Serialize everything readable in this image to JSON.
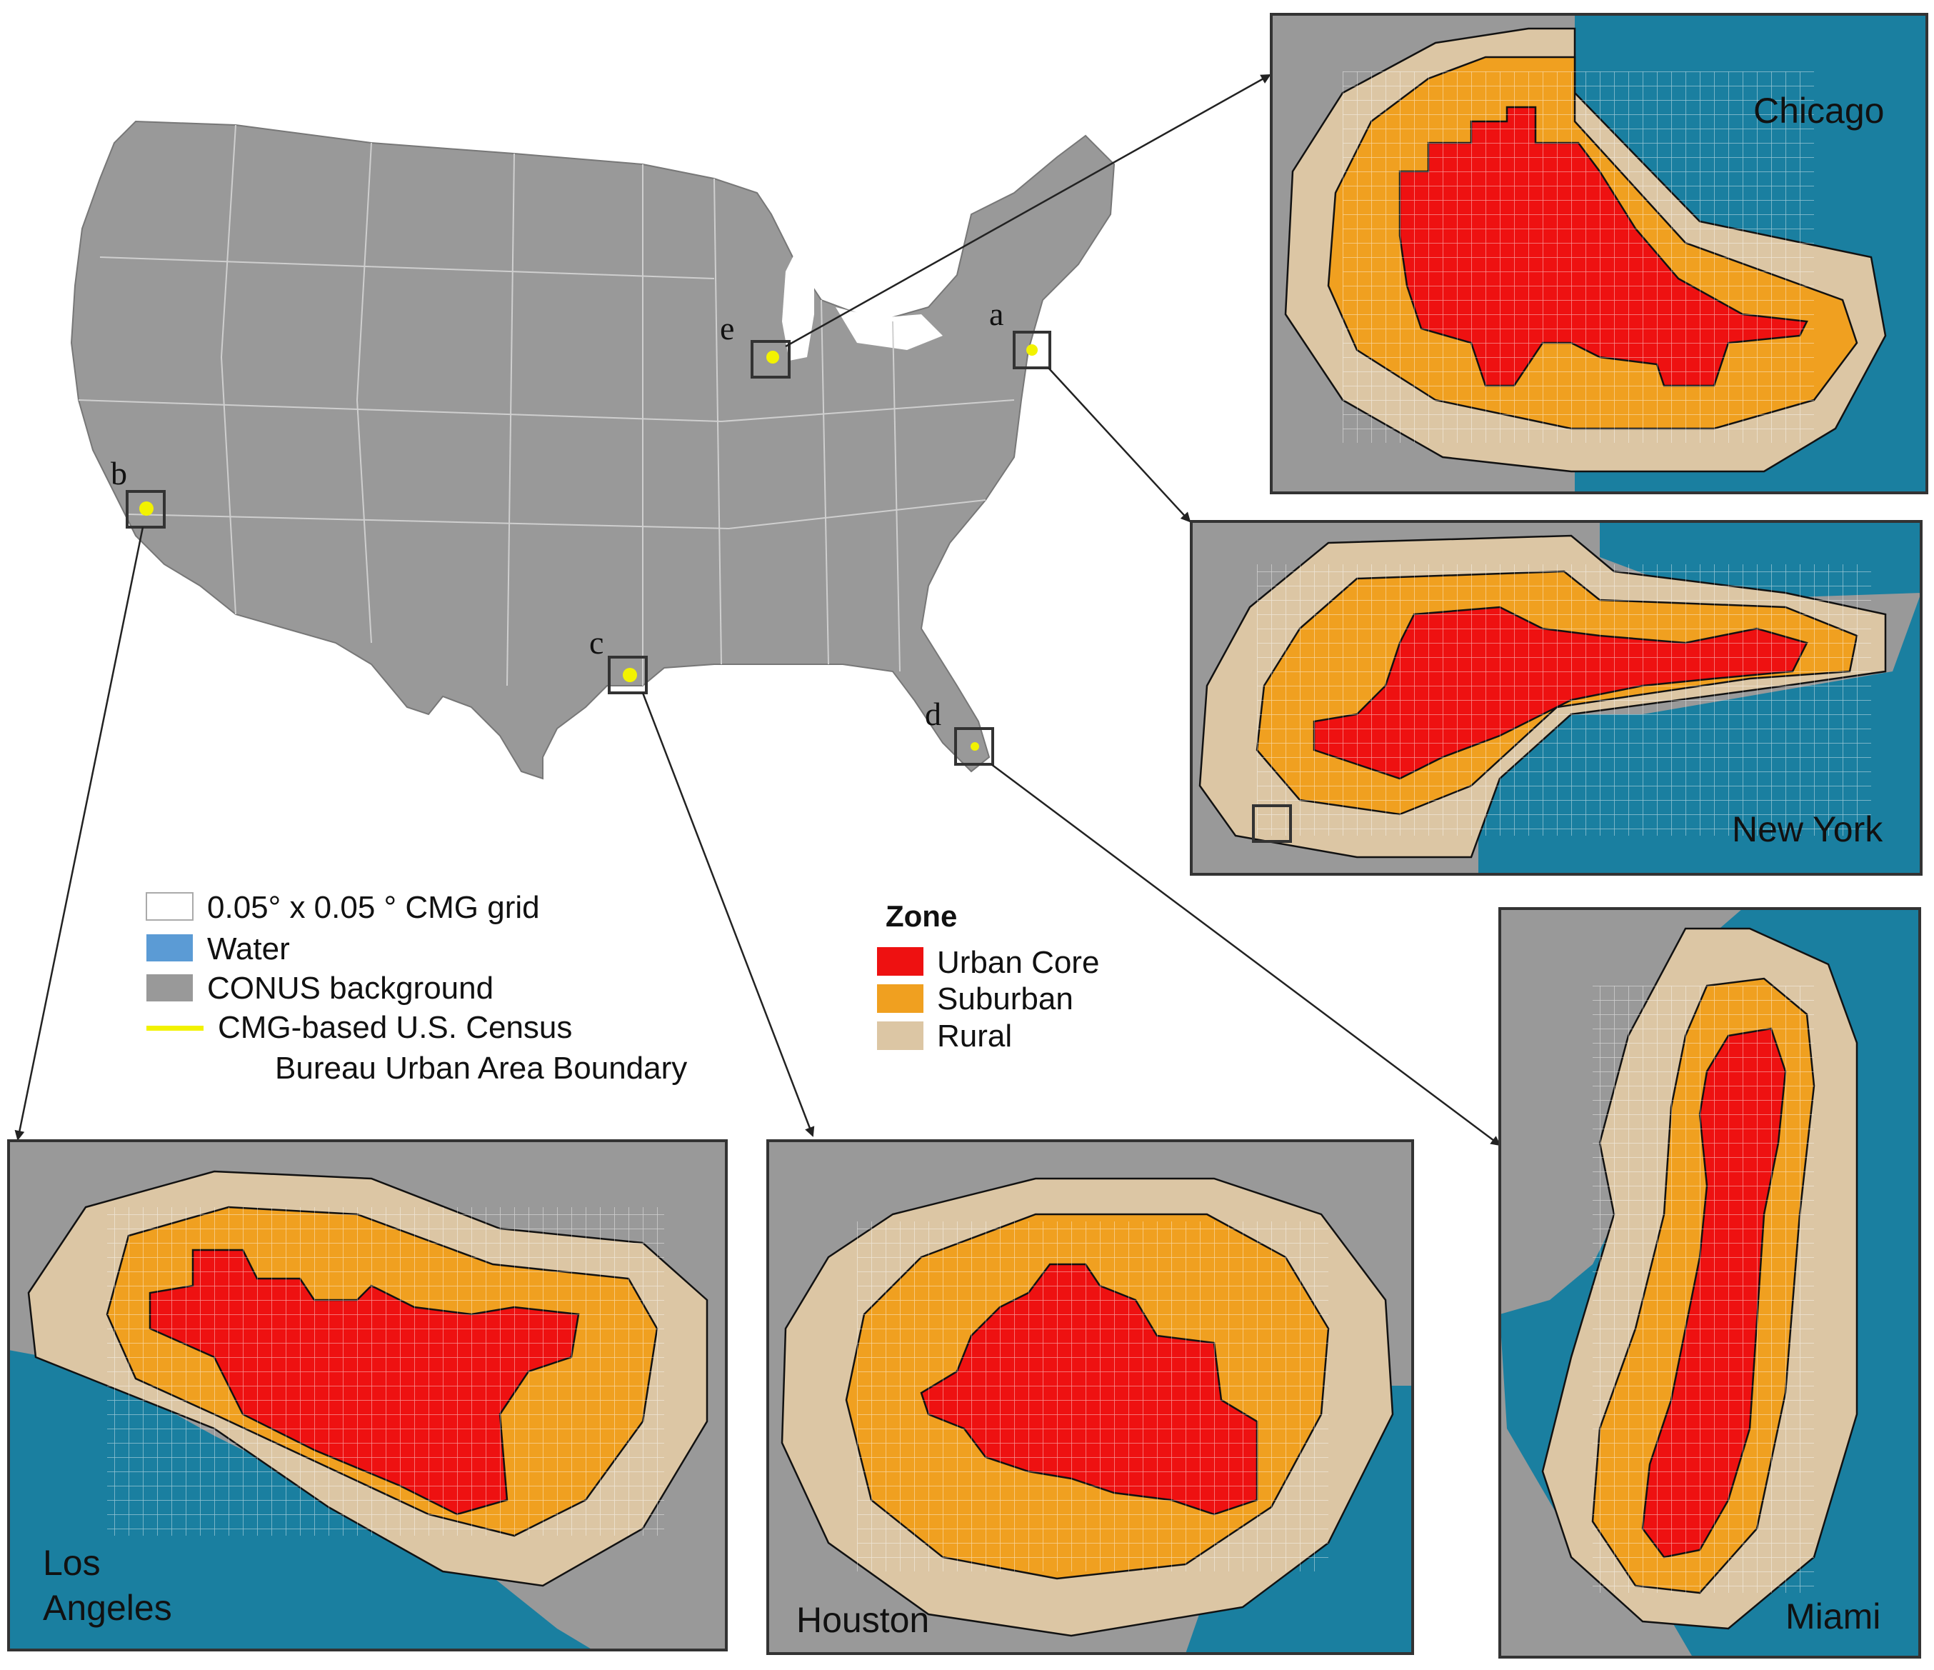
{
  "site_labels": [
    "a",
    "b",
    "c",
    "d",
    "e"
  ],
  "panels": {
    "chicago": "Chicago",
    "new_york": "New York",
    "los_angeles_line1": "Los",
    "los_angeles_line2": "Angeles",
    "houston": "Houston",
    "miami": "Miami"
  },
  "legend_left": {
    "grid": "0.05° x 0.05 ° CMG grid",
    "water": "Water",
    "conus": "CONUS background",
    "boundary_line1": "CMG-based U.S. Census",
    "boundary_line2": "Bureau Urban Area Boundary"
  },
  "legend_zone": {
    "title": "Zone",
    "urban_core": "Urban Core",
    "suburban": "Suburban",
    "rural": "Rural"
  },
  "colors": {
    "water": "#1a7fa0",
    "water_legend": "#5b9bd5",
    "conus": "#999999",
    "urban_core": "#ee1111",
    "suburban": "#f0a020",
    "rural": "#dcc6a4",
    "boundary": "#f2f200"
  }
}
